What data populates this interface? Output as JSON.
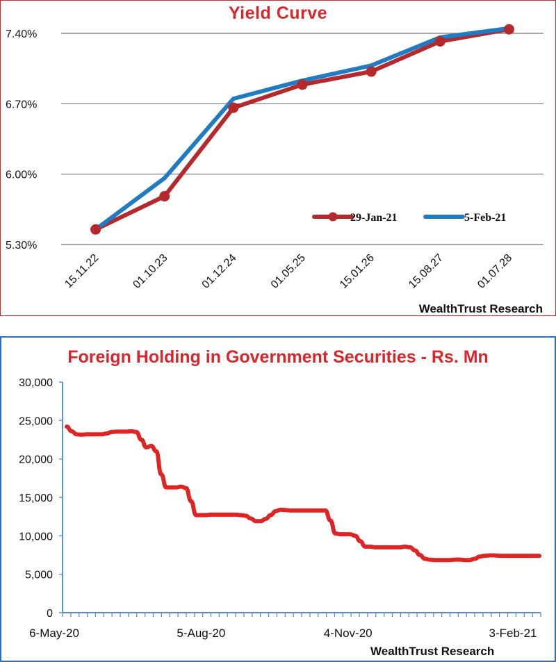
{
  "chart_data": [
    {
      "type": "line",
      "title": "Yield Curve",
      "categories": [
        "15.11.22",
        "01.10.23",
        "01.12.24",
        "01.05.25",
        "15.01.26",
        "15.08.27",
        "01.07.28"
      ],
      "ylim": [
        5.3,
        7.4
      ],
      "yticks": [
        "5.30%",
        "6.00%",
        "6.70%",
        "7.40%"
      ],
      "ytick_values": [
        5.3,
        6.0,
        6.7,
        7.4
      ],
      "grid": true,
      "legend_position": "bottom-right",
      "series": [
        {
          "name": "29-Jan-21",
          "color": "#b5282c",
          "marker": "circle",
          "values": [
            5.45,
            5.78,
            6.66,
            6.89,
            7.02,
            7.32,
            7.44
          ]
        },
        {
          "name": "5-Feb-21",
          "color": "#1f7bc4",
          "marker": "none",
          "values": [
            5.45,
            5.96,
            6.75,
            6.93,
            7.08,
            7.36,
            7.45
          ]
        }
      ],
      "credit": "WealthTrust Research"
    },
    {
      "type": "line",
      "title": "Foreign Holding in Government Securities - Rs. Mn",
      "x_labels": [
        "6-May-20",
        "5-Aug-20",
        "4-Nov-20",
        "3-Feb-21"
      ],
      "ylim": [
        0,
        30000
      ],
      "yticks": [
        "0",
        "5,000",
        "10,000",
        "15,000",
        "20,000",
        "25,000",
        "30,000"
      ],
      "ytick_values": [
        0,
        5000,
        10000,
        15000,
        20000,
        25000,
        30000
      ],
      "grid": false,
      "series": [
        {
          "color": "#e02424",
          "x": [
            0,
            1,
            2,
            3,
            4,
            5,
            6,
            7,
            8,
            9,
            10,
            11,
            12,
            13,
            14,
            15,
            16,
            17,
            18,
            19,
            20,
            21,
            22,
            23,
            24,
            25,
            26,
            27,
            28,
            29,
            30,
            31,
            32,
            33,
            34,
            35,
            36,
            37,
            38,
            39,
            40,
            41,
            42,
            43,
            44,
            45,
            46,
            47,
            48,
            49,
            50,
            51,
            52,
            53,
            54,
            55,
            56,
            57,
            58,
            59,
            60,
            61,
            62,
            63,
            64,
            65,
            66,
            67,
            68,
            69,
            70,
            71,
            72,
            73,
            74,
            75,
            76,
            77,
            78,
            79,
            80,
            81,
            82,
            83,
            84,
            85,
            86,
            87,
            88,
            89,
            90,
            91,
            92,
            93,
            94,
            95
          ],
          "values": [
            24200,
            23600,
            23200,
            23150,
            23200,
            23200,
            23200,
            23200,
            23300,
            23500,
            23550,
            23550,
            23550,
            23600,
            23500,
            22500,
            21500,
            21700,
            21000,
            18000,
            16300,
            16300,
            16300,
            16400,
            16200,
            14500,
            12700,
            12700,
            12700,
            12750,
            12750,
            12750,
            12750,
            12750,
            12750,
            12700,
            12600,
            12250,
            11900,
            11900,
            12200,
            12700,
            13200,
            13400,
            13350,
            13300,
            13300,
            13300,
            13300,
            13300,
            13300,
            13300,
            13300,
            12000,
            10300,
            10200,
            10200,
            10200,
            10000,
            9300,
            8600,
            8600,
            8500,
            8500,
            8500,
            8500,
            8500,
            8500,
            8600,
            8500,
            8100,
            7500,
            7000,
            6900,
            6850,
            6850,
            6850,
            6850,
            6900,
            6900,
            6850,
            6850,
            7000,
            7300,
            7400,
            7450,
            7450,
            7400,
            7400,
            7400,
            7400,
            7400,
            7400,
            7400,
            7400,
            7400
          ]
        }
      ],
      "credit": "WealthTrust Research"
    }
  ],
  "colors": {
    "accent_title": "#d9262b",
    "top_border": "#d9262b",
    "bottom_border": "#2a6fc9",
    "axis_bottom": "#5a8fd6"
  }
}
